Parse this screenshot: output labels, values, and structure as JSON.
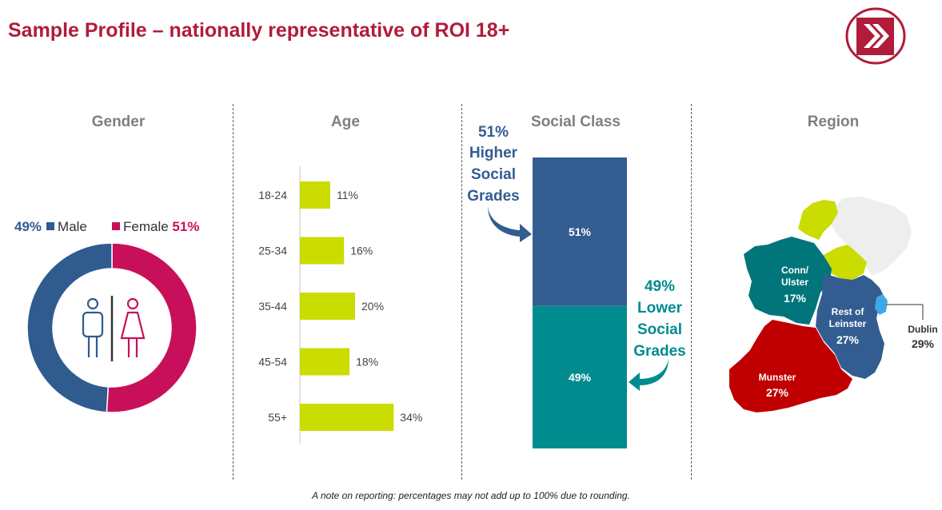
{
  "title": "Sample Profile – nationally representative of ROI 18+",
  "note": "A note on reporting: percentages may not add up to 100% due to rounding.",
  "colors": {
    "title": "#b01c3a",
    "male": "#2f5b8e",
    "female": "#c8105a",
    "age_bar": "#cadc00",
    "social_high": "#335d91",
    "social_low": "#008b8f",
    "munster": "#c00000",
    "conn_ulster": "#00767a",
    "rest_of_leinster": "#335d91",
    "dublin": "#41a8e8",
    "northern_ireland": "#eeeeee",
    "ulster_roi": "#cadc00"
  },
  "gender": {
    "title": "Gender",
    "male_pct": "49%",
    "male_label": "Male",
    "female_label": "Female",
    "female_pct": "51%"
  },
  "age": {
    "title": "Age"
  },
  "social": {
    "title": "Social Class",
    "higher_pct": "51%",
    "higher_label_lines": [
      "Higher",
      "Social",
      "Grades"
    ],
    "lower_pct": "49%",
    "lower_label_lines": [
      "Lower",
      "Social",
      "Grades"
    ]
  },
  "region": {
    "title": "Region",
    "conn_ulster_label": [
      "Conn/",
      "Ulster"
    ],
    "conn_ulster_pct": "17%",
    "rest_of_leinster_label": [
      "Rest of",
      "Leinster"
    ],
    "rest_of_leinster_pct": "27%",
    "munster_label": "Munster",
    "munster_pct": "27%",
    "dublin_label": "Dublin",
    "dublin_pct": "29%"
  },
  "chart_data": [
    {
      "type": "pie",
      "title": "Gender",
      "categories": [
        "Male",
        "Female"
      ],
      "values": [
        49,
        51
      ],
      "unit": "%"
    },
    {
      "type": "bar",
      "orientation": "horizontal",
      "title": "Age",
      "categories": [
        "18-24",
        "25-34",
        "35-44",
        "45-54",
        "55+"
      ],
      "values": [
        11,
        16,
        20,
        18,
        34
      ],
      "value_labels": [
        "11%",
        "16%",
        "20%",
        "18%",
        "34%"
      ],
      "unit": "%"
    },
    {
      "type": "bar",
      "stacked": true,
      "title": "Social Class",
      "categories": [
        "Higher Social Grades",
        "Lower Social Grades"
      ],
      "values": [
        51,
        49
      ],
      "value_labels": [
        "51%",
        "49%"
      ],
      "unit": "%"
    }
  ]
}
